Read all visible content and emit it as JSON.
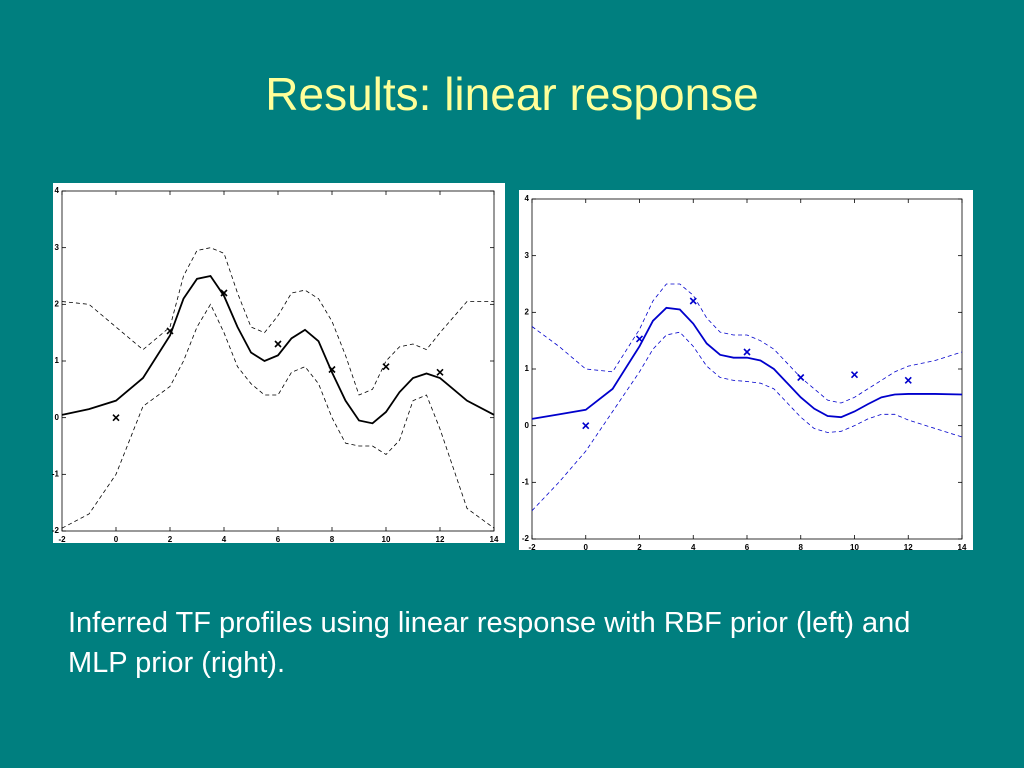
{
  "title": "Results: linear response",
  "caption": "Inferred TF profiles using linear response with RBF prior (left) and MLP prior (right).",
  "chart_data": [
    {
      "type": "line",
      "x": [
        -2,
        -1,
        0,
        1,
        2,
        2.5,
        3,
        3.5,
        4,
        4.5,
        5,
        5.5,
        6,
        6.5,
        7,
        7.5,
        8,
        8.5,
        9,
        9.5,
        10,
        10.5,
        11,
        11.5,
        12,
        13,
        14
      ],
      "series": [
        {
          "color": "#000000",
          "style": "solid",
          "values": [
            0.05,
            0.15,
            0.3,
            0.7,
            1.45,
            2.1,
            2.45,
            2.5,
            2.15,
            1.6,
            1.15,
            1.0,
            1.1,
            1.4,
            1.55,
            1.35,
            0.8,
            0.3,
            -0.05,
            -0.1,
            0.1,
            0.45,
            0.7,
            0.78,
            0.7,
            0.3,
            0.05
          ]
        },
        {
          "color": "#000000",
          "style": "dashed",
          "values": [
            2.05,
            2.0,
            1.6,
            1.2,
            1.6,
            2.5,
            2.95,
            3.0,
            2.9,
            2.2,
            1.6,
            1.5,
            1.8,
            2.2,
            2.25,
            2.1,
            1.7,
            1.1,
            0.4,
            0.5,
            1.0,
            1.25,
            1.3,
            1.2,
            1.5,
            2.05,
            2.05
          ]
        },
        {
          "color": "#000000",
          "style": "dashed",
          "values": [
            -1.95,
            -1.7,
            -1.0,
            0.2,
            0.55,
            1.0,
            1.6,
            2.0,
            1.5,
            0.9,
            0.6,
            0.4,
            0.4,
            0.8,
            0.9,
            0.6,
            0.0,
            -0.45,
            -0.5,
            -0.5,
            -0.65,
            -0.4,
            0.3,
            0.4,
            -0.2,
            -1.6,
            -1.95
          ]
        }
      ],
      "scatter": {
        "color": "#000000",
        "x": [
          0,
          2,
          4,
          6,
          8,
          10,
          12
        ],
        "y": [
          0,
          1.53,
          2.2,
          1.3,
          0.85,
          0.9,
          0.8
        ]
      },
      "xlim": [
        -2,
        14
      ],
      "ylim": [
        -2,
        4
      ],
      "xticks": [
        -2,
        0,
        2,
        4,
        6,
        8,
        10,
        12,
        14
      ],
      "yticks": [
        -2,
        -1,
        0,
        1,
        2,
        3,
        4
      ]
    },
    {
      "type": "line",
      "x": [
        -2,
        -1,
        0,
        1,
        2,
        2.5,
        3,
        3.5,
        4,
        4.5,
        5,
        5.5,
        6,
        6.5,
        7,
        7.5,
        8,
        8.5,
        9,
        9.5,
        10,
        10.5,
        11,
        11.5,
        12,
        13,
        14
      ],
      "series": [
        {
          "color": "#0000cc",
          "style": "solid",
          "values": [
            0.12,
            0.2,
            0.28,
            0.65,
            1.4,
            1.85,
            2.08,
            2.05,
            1.8,
            1.45,
            1.25,
            1.2,
            1.2,
            1.15,
            1.0,
            0.75,
            0.5,
            0.3,
            0.17,
            0.15,
            0.25,
            0.38,
            0.5,
            0.55,
            0.56,
            0.56,
            0.55
          ]
        },
        {
          "color": "#0000cc",
          "style": "dashed",
          "values": [
            1.75,
            1.4,
            1.0,
            0.95,
            1.7,
            2.2,
            2.5,
            2.5,
            2.3,
            1.9,
            1.65,
            1.6,
            1.6,
            1.5,
            1.35,
            1.1,
            0.85,
            0.65,
            0.45,
            0.4,
            0.5,
            0.65,
            0.8,
            0.95,
            1.05,
            1.15,
            1.3
          ]
        },
        {
          "color": "#0000cc",
          "style": "dashed",
          "values": [
            -1.5,
            -1.0,
            -0.45,
            0.25,
            0.95,
            1.35,
            1.6,
            1.65,
            1.4,
            1.05,
            0.85,
            0.8,
            0.78,
            0.75,
            0.65,
            0.4,
            0.15,
            -0.05,
            -0.12,
            -0.1,
            0.0,
            0.12,
            0.2,
            0.2,
            0.1,
            -0.05,
            -0.2
          ]
        }
      ],
      "scatter": {
        "color": "#0000cc",
        "x": [
          0,
          2,
          4,
          6,
          8,
          10,
          12
        ],
        "y": [
          0,
          1.53,
          2.2,
          1.3,
          0.85,
          0.9,
          0.8
        ]
      },
      "xlim": [
        -2,
        14
      ],
      "ylim": [
        -2,
        4
      ],
      "xticks": [
        -2,
        0,
        2,
        4,
        6,
        8,
        10,
        12,
        14
      ],
      "yticks": [
        -2,
        -1,
        0,
        1,
        2,
        3,
        4
      ]
    }
  ]
}
